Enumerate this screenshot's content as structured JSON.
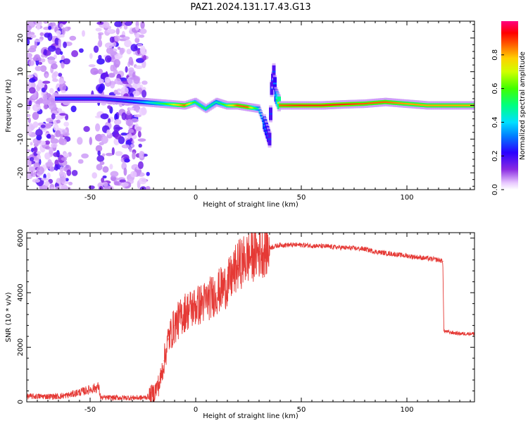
{
  "figure": {
    "title": "PAZ1.2024.131.17.43.G13"
  },
  "colors": {
    "snr_line": "#e53935",
    "axis": "#000000",
    "background": "#ffffff"
  },
  "chart_data": [
    {
      "type": "heatmap",
      "title": "PAZ1.2024.131.17.43.G13",
      "xlabel": "Height of straight line (km)",
      "ylabel": "Frequency (Hz)",
      "xlim": [
        -80,
        132
      ],
      "ylim": [
        -25,
        25
      ],
      "xticks": [
        -50,
        0,
        50,
        100
      ],
      "yticks": [
        -20,
        -10,
        0,
        10,
        20
      ],
      "colormap": "rainbow (purple to red)",
      "colorbar": {
        "label": "Normalized spectral amplitude",
        "range": [
          0,
          1
        ],
        "ticks": [
          "0.0",
          "0.2",
          "0.4",
          "0.6",
          "0.8"
        ],
        "position": "right"
      },
      "ridge": {
        "description_of_values": "dominant frequency vs height",
        "x": [
          -65,
          -55,
          -45,
          -35,
          -25,
          -15,
          -5,
          0,
          5,
          10,
          15,
          20,
          25,
          30,
          33,
          35,
          36,
          37,
          38,
          40,
          50,
          60,
          70,
          80,
          90,
          100,
          110,
          120,
          132
        ],
        "y": [
          2,
          2,
          2,
          1.5,
          1,
          0.5,
          0,
          1,
          -1,
          1,
          0,
          0,
          -0.5,
          -1,
          -6,
          -10,
          5,
          10,
          3,
          0,
          0,
          0,
          0.3,
          0.5,
          1,
          0.5,
          0,
          0,
          0
        ],
        "amplitude": [
          0.3,
          0.3,
          0.3,
          0.3,
          0.4,
          0.6,
          0.9,
          0.6,
          0.6,
          0.5,
          0.7,
          0.9,
          0.9,
          0.5,
          0.4,
          0.3,
          0.3,
          0.3,
          0.4,
          0.9,
          0.95,
          0.95,
          0.95,
          0.9,
          0.9,
          0.85,
          0.85,
          0.85,
          0.85
        ]
      },
      "noise_region": {
        "x_range": [
          -80,
          -22
        ],
        "description": "scattered low-amplitude patches"
      }
    },
    {
      "type": "line",
      "xlabel": "Height of straight line (km)",
      "ylabel": "SNR (10 * v/v)",
      "xlim": [
        -80,
        132
      ],
      "ylim": [
        0,
        6200
      ],
      "xticks": [
        -50,
        0,
        50,
        100
      ],
      "yticks": [
        0,
        2000,
        4000,
        6000
      ],
      "series": [
        {
          "color": "#e53935",
          "x": [
            -80,
            -65,
            -60,
            -55,
            -50,
            -46,
            -45,
            -40,
            -35,
            -30,
            -25,
            -22,
            -20,
            -17,
            -15,
            -13,
            -10,
            -5,
            0,
            3,
            5,
            10,
            15,
            18,
            20,
            25,
            30,
            35,
            40,
            45,
            50,
            60,
            70,
            80,
            85,
            90,
            95,
            100,
            105,
            110,
            115,
            117,
            117.5,
            120,
            125,
            132
          ],
          "y": [
            200,
            200,
            250,
            350,
            450,
            550,
            150,
            150,
            150,
            150,
            150,
            200,
            300,
            700,
            1500,
            2300,
            2800,
            3300,
            3500,
            3600,
            3700,
            4000,
            4300,
            4700,
            5000,
            5300,
            5500,
            5650,
            5750,
            5750,
            5750,
            5700,
            5650,
            5600,
            5500,
            5450,
            5400,
            5350,
            5300,
            5250,
            5200,
            5150,
            2600,
            2550,
            2500,
            2500
          ]
        }
      ]
    }
  ]
}
